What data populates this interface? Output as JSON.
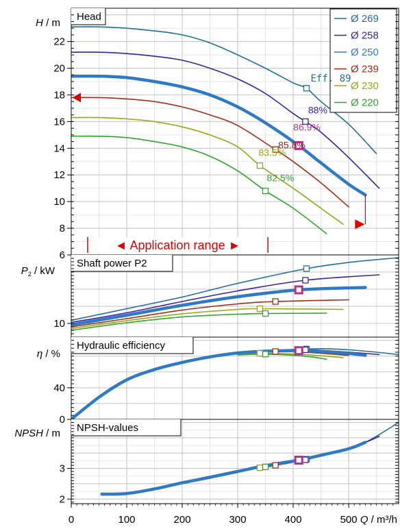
{
  "chart_data": {
    "type": "line",
    "x_axis": {
      "label_var": "Q",
      "label_unit": " / m³/h",
      "range": [
        0,
        590
      ],
      "ticks": [
        0,
        100,
        200,
        300,
        400,
        500
      ]
    },
    "series_colors": [
      "#1f6e9c",
      "#3a1ea5",
      "#2f7ac4",
      "#a32a14",
      "#9aa511",
      "#2aa52a"
    ],
    "legend": [
      "Ø 269",
      "Ø 258",
      "Ø 250",
      "Ø 239",
      "Ø 230",
      "Ø 220"
    ],
    "selected_curve": "Ø 250",
    "panels": {
      "head": {
        "title": "Head",
        "ylabel_var": "H",
        "ylabel_unit": " / m",
        "ylim": [
          6,
          24.5
        ],
        "yticks": [
          6,
          8,
          10,
          12,
          14,
          16,
          18,
          20,
          22
        ],
        "series": [
          {
            "name": "Ø 269",
            "points": [
              [
                0,
                23.1
              ],
              [
                50,
                23.1
              ],
              [
                100,
                23.0
              ],
              [
                150,
                22.8
              ],
              [
                200,
                22.5
              ],
              [
                250,
                21.9
              ],
              [
                300,
                21.0
              ],
              [
                350,
                20.0
              ],
              [
                400,
                18.9
              ],
              [
                424,
                18.5
              ],
              [
                450,
                17.5
              ],
              [
                500,
                15.8
              ],
              [
                550,
                13.6
              ]
            ]
          },
          {
            "name": "Ø 258",
            "points": [
              [
                0,
                21.2
              ],
              [
                50,
                21.2
              ],
              [
                100,
                21.1
              ],
              [
                150,
                20.9
              ],
              [
                200,
                20.6
              ],
              [
                250,
                20.0
              ],
              [
                300,
                19.2
              ],
              [
                350,
                18.1
              ],
              [
                400,
                16.6
              ],
              [
                422,
                16.0
              ],
              [
                450,
                15.2
              ],
              [
                500,
                13.3
              ],
              [
                555,
                11.0
              ]
            ]
          },
          {
            "name": "Ø 250",
            "points": [
              [
                0,
                19.4
              ],
              [
                50,
                19.4
              ],
              [
                100,
                19.3
              ],
              [
                150,
                19.0
              ],
              [
                200,
                18.6
              ],
              [
                250,
                18.0
              ],
              [
                300,
                17.1
              ],
              [
                350,
                15.9
              ],
              [
                410,
                14.2
              ],
              [
                450,
                12.9
              ],
              [
                500,
                11.3
              ],
              [
                530,
                10.5
              ]
            ]
          },
          {
            "name": "Ø 239",
            "points": [
              [
                0,
                17.8
              ],
              [
                50,
                17.8
              ],
              [
                100,
                17.7
              ],
              [
                150,
                17.5
              ],
              [
                200,
                17.1
              ],
              [
                250,
                16.5
              ],
              [
                300,
                15.7
              ],
              [
                368,
                13.9
              ],
              [
                400,
                13.0
              ],
              [
                450,
                11.4
              ],
              [
                500,
                9.6
              ]
            ]
          },
          {
            "name": "Ø 230",
            "points": [
              [
                0,
                16.3
              ],
              [
                50,
                16.3
              ],
              [
                100,
                16.2
              ],
              [
                150,
                16.0
              ],
              [
                200,
                15.6
              ],
              [
                250,
                15.0
              ],
              [
                300,
                14.1
              ],
              [
                340,
                12.7
              ],
              [
                400,
                11.0
              ],
              [
                450,
                9.5
              ],
              [
                490,
                8.3
              ]
            ]
          },
          {
            "name": "Ø 220",
            "points": [
              [
                0,
                14.9
              ],
              [
                50,
                14.9
              ],
              [
                100,
                14.8
              ],
              [
                150,
                14.5
              ],
              [
                200,
                14.1
              ],
              [
                250,
                13.4
              ],
              [
                300,
                12.3
              ],
              [
                350,
                10.8
              ],
              [
                400,
                9.5
              ],
              [
                460,
                7.6
              ]
            ]
          }
        ],
        "efficiency_labels": [
          {
            "text": "Eff. 89",
            "series": "Ø 269",
            "q": 424,
            "h": 18.5
          },
          {
            "text": "88%",
            "series": "Ø 258",
            "q": 422,
            "h": 16.0
          },
          {
            "text": "86.9%",
            "series": "Ø 250",
            "q": 410,
            "h": 14.2
          },
          {
            "text": "85.8%",
            "series": "Ø 239",
            "q": 368,
            "h": 13.9
          },
          {
            "text": "83.5%",
            "series": "Ø 230",
            "q": 340,
            "h": 12.7
          },
          {
            "text": "82.5%",
            "series": "Ø 220",
            "q": 350,
            "h": 10.8
          }
        ],
        "application_range_label": "◄ Application range ►",
        "application_range_q": [
          32,
          352
        ]
      },
      "power": {
        "title": "Shaft power P2",
        "ylabel_var": "P",
        "ylabel_sub": "2",
        "ylabel_unit": " / kW",
        "ylim": [
          6,
          30
        ],
        "yticks": [
          10
        ],
        "series": [
          {
            "name": "Ø 269",
            "points": [
              [
                0,
                10.9
              ],
              [
                100,
                14.3
              ],
              [
                200,
                17.7
              ],
              [
                300,
                21.7
              ],
              [
                424,
                26.0
              ],
              [
                500,
                27.8
              ],
              [
                590,
                29.2
              ]
            ]
          },
          {
            "name": "Ø 258",
            "points": [
              [
                0,
                10.3
              ],
              [
                100,
                13.1
              ],
              [
                200,
                16.4
              ],
              [
                300,
                19.5
              ],
              [
                422,
                22.6
              ],
              [
                555,
                24.2
              ]
            ]
          },
          {
            "name": "Ø 250",
            "points": [
              [
                0,
                9.6
              ],
              [
                100,
                12.4
              ],
              [
                200,
                15.3
              ],
              [
                300,
                17.8
              ],
              [
                410,
                19.8
              ],
              [
                530,
                20.5
              ]
            ]
          },
          {
            "name": "Ø 239",
            "points": [
              [
                0,
                9.0
              ],
              [
                100,
                11.4
              ],
              [
                200,
                13.9
              ],
              [
                300,
                15.7
              ],
              [
                368,
                16.4
              ],
              [
                500,
                16.9
              ]
            ]
          },
          {
            "name": "Ø 230",
            "points": [
              [
                0,
                8.5
              ],
              [
                100,
                10.8
              ],
              [
                200,
                12.8
              ],
              [
                300,
                14.1
              ],
              [
                340,
                14.3
              ],
              [
                490,
                14.1
              ]
            ]
          },
          {
            "name": "Ø 220",
            "points": [
              [
                0,
                8.0
              ],
              [
                100,
                10.2
              ],
              [
                200,
                11.9
              ],
              [
                300,
                12.7
              ],
              [
                350,
                12.9
              ],
              [
                460,
                13.0
              ]
            ]
          }
        ]
      },
      "efficiency": {
        "title": "Hydraulic efficiency",
        "ylabel_var": "η",
        "ylabel_unit": " / %",
        "ylim": [
          0,
          104
        ],
        "yticks": [
          0,
          40
        ],
        "series": [
          {
            "name": "Ø 269",
            "points": [
              [
                0,
                0
              ],
              [
                100,
                50
              ],
              [
                200,
                72
              ],
              [
                300,
                84
              ],
              [
                424,
                89
              ],
              [
                500,
                88
              ],
              [
                590,
                82
              ]
            ]
          },
          {
            "name": "Ø 258",
            "points": [
              [
                0,
                0
              ],
              [
                100,
                50
              ],
              [
                200,
                72
              ],
              [
                300,
                84
              ],
              [
                422,
                88
              ],
              [
                555,
                82
              ]
            ]
          },
          {
            "name": "Ø 250",
            "points": [
              [
                0,
                0
              ],
              [
                50,
                28
              ],
              [
                100,
                50
              ],
              [
                150,
                63
              ],
              [
                200,
                72
              ],
              [
                250,
                79
              ],
              [
                300,
                84
              ],
              [
                350,
                86.2
              ],
              [
                410,
                86.9
              ],
              [
                450,
                86
              ],
              [
                500,
                83.5
              ],
              [
                530,
                81
              ]
            ]
          },
          {
            "name": "Ø 239",
            "points": [
              [
                300,
                83.5
              ],
              [
                368,
                85.8
              ],
              [
                420,
                85
              ],
              [
                500,
                81
              ]
            ]
          },
          {
            "name": "Ø 230",
            "points": [
              [
                300,
                82.5
              ],
              [
                340,
                83.5
              ],
              [
                420,
                82
              ],
              [
                490,
                78
              ]
            ]
          },
          {
            "name": "Ø 220",
            "points": [
              [
                300,
                81.5
              ],
              [
                350,
                82.5
              ],
              [
                420,
                80
              ],
              [
                460,
                76
              ]
            ]
          }
        ]
      },
      "npsh": {
        "title": "NPSH-values",
        "ylabel_var": "NPSH",
        "ylabel_unit": " / m",
        "ylim": [
          1.85,
          4.6
        ],
        "yticks": [
          2,
          3
        ],
        "series": [
          {
            "name": "Ø 269",
            "points": [
              [
                480,
                3.55
              ],
              [
                530,
                3.85
              ],
              [
                590,
                4.5
              ]
            ]
          },
          {
            "name": "Ø 258",
            "points": [
              [
                424,
                3.3
              ],
              [
                480,
                3.55
              ],
              [
                530,
                3.85
              ],
              [
                555,
                4.05
              ]
            ]
          },
          {
            "name": "Ø 250",
            "points": [
              [
                55,
                2.16
              ],
              [
                100,
                2.18
              ],
              [
                150,
                2.33
              ],
              [
                200,
                2.53
              ],
              [
                250,
                2.71
              ],
              [
                300,
                2.9
              ],
              [
                350,
                3.09
              ],
              [
                410,
                3.27
              ],
              [
                450,
                3.43
              ],
              [
                500,
                3.64
              ],
              [
                530,
                3.85
              ]
            ]
          },
          {
            "name": "Ø 239",
            "points": [
              [
                330,
                3.02
              ],
              [
                368,
                3.1
              ],
              [
                400,
                3.2
              ]
            ]
          },
          {
            "name": "Ø 230",
            "points": [
              [
                320,
                2.99
              ],
              [
                340,
                3.02
              ],
              [
                360,
                3.06
              ]
            ]
          },
          {
            "name": "Ø 220",
            "points": [
              [
                330,
                3.0
              ],
              [
                350,
                3.05
              ],
              [
                370,
                3.1
              ]
            ]
          }
        ],
        "markers": [
          {
            "series": "Ø 269",
            "q": 424,
            "v": 3.3
          },
          {
            "series": "Ø 258",
            "q": 422,
            "v": 3.28
          },
          {
            "series": "Ø 250",
            "q": 410,
            "v": 3.27
          },
          {
            "series": "Ø 239",
            "q": 368,
            "v": 3.1
          },
          {
            "series": "Ø 230",
            "q": 340,
            "v": 3.02
          },
          {
            "series": "Ø 220",
            "q": 350,
            "v": 3.05
          }
        ]
      }
    }
  }
}
